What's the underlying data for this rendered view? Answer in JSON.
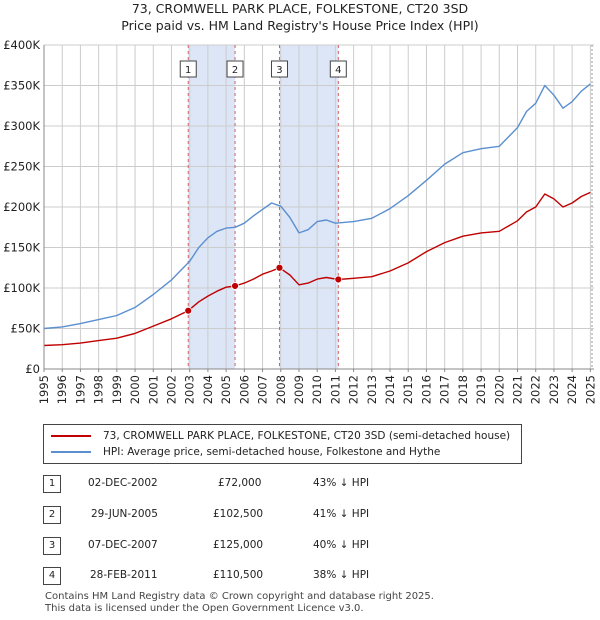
{
  "title_line1": "73, CROMWELL PARK PLACE, FOLKESTONE, CT20 3SD",
  "title_line2": "Price paid vs. HM Land Registry's House Price Index (HPI)",
  "colors": {
    "price_paid": "#c00000",
    "hpi": "#5b8fcf",
    "sale_band": "#dce6f7",
    "grid": "#cccccc"
  },
  "chart_data": {
    "type": "line",
    "title": "73, CROMWELL PARK PLACE, FOLKESTONE, CT20 3SD — Price paid vs. HM Land Registry's House Price Index (HPI)",
    "xlabel": "",
    "ylabel": "",
    "xlim": [
      1995,
      2025.2
    ],
    "ylim": [
      0,
      400000
    ],
    "x_ticks": [
      "1995",
      "1996",
      "1997",
      "1998",
      "1999",
      "2000",
      "2001",
      "2002",
      "2003",
      "2004",
      "2005",
      "2006",
      "2007",
      "2008",
      "2009",
      "2010",
      "2011",
      "2012",
      "2013",
      "2014",
      "2015",
      "2016",
      "2017",
      "2018",
      "2019",
      "2020",
      "2021",
      "2022",
      "2023",
      "2024",
      "2025"
    ],
    "y_ticks": [
      {
        "value": 0,
        "label": "£0"
      },
      {
        "value": 50000,
        "label": "£50K"
      },
      {
        "value": 100000,
        "label": "£100K"
      },
      {
        "value": 150000,
        "label": "£150K"
      },
      {
        "value": 200000,
        "label": "£200K"
      },
      {
        "value": 250000,
        "label": "£250K"
      },
      {
        "value": 300000,
        "label": "£300K"
      },
      {
        "value": 350000,
        "label": "£350K"
      },
      {
        "value": 400000,
        "label": "£400K"
      }
    ],
    "series": [
      {
        "name": "73, CROMWELL PARK PLACE, FOLKESTONE, CT20 3SD (semi-detached house)",
        "color": "#c00000",
        "x": [
          1995,
          1996,
          1997,
          1998,
          1999,
          2000,
          2001,
          2002,
          2002.92,
          2003.5,
          2004,
          2004.5,
          2005,
          2005.49,
          2006,
          2006.5,
          2007,
          2007.5,
          2007.93,
          2008.5,
          2009,
          2009.5,
          2010,
          2010.5,
          2011.16,
          2012,
          2013,
          2014,
          2015,
          2016,
          2017,
          2018,
          2019,
          2020,
          2021,
          2021.5,
          2022,
          2022.5,
          2023,
          2023.5,
          2024,
          2024.5,
          2025
        ],
        "y": [
          29000,
          30000,
          32000,
          35000,
          38000,
          44000,
          53000,
          62000,
          72000,
          83000,
          90000,
          96000,
          101000,
          102500,
          106000,
          111000,
          117000,
          121000,
          125000,
          116000,
          104000,
          106000,
          111000,
          113000,
          110500,
          112000,
          114000,
          121000,
          131000,
          145000,
          156000,
          164000,
          168000,
          170000,
          183000,
          194000,
          200000,
          216000,
          210000,
          200000,
          205000,
          213000,
          218000
        ]
      },
      {
        "name": "HPI: Average price, semi-detached house, Folkestone and Hythe",
        "color": "#5b8fcf",
        "x": [
          1995,
          1996,
          1997,
          1998,
          1999,
          2000,
          2001,
          2002,
          2003,
          2003.5,
          2004,
          2004.5,
          2005,
          2005.5,
          2006,
          2006.5,
          2007,
          2007.5,
          2008,
          2008.5,
          2009,
          2009.5,
          2010,
          2010.5,
          2011,
          2012,
          2013,
          2014,
          2015,
          2016,
          2017,
          2018,
          2019,
          2020,
          2021,
          2021.5,
          2022,
          2022.5,
          2023,
          2023.5,
          2024,
          2024.5,
          2025
        ],
        "y": [
          50000,
          52000,
          56000,
          61000,
          66000,
          76000,
          92000,
          110000,
          133000,
          150000,
          162000,
          170000,
          174000,
          175000,
          180000,
          189000,
          197000,
          205000,
          201000,
          187000,
          168000,
          172000,
          182000,
          184000,
          180000,
          182000,
          186000,
          198000,
          214000,
          233000,
          253000,
          267000,
          272000,
          275000,
          298000,
          318000,
          328000,
          350000,
          338000,
          322000,
          330000,
          343000,
          352000
        ]
      }
    ],
    "sales": [
      {
        "num": "1",
        "x": 2002.92,
        "price": 72000
      },
      {
        "num": "2",
        "x": 2005.49,
        "price": 102500
      },
      {
        "num": "3",
        "x": 2007.93,
        "price": 125000
      },
      {
        "num": "4",
        "x": 2011.16,
        "price": 110500
      }
    ],
    "shaded_bands": [
      [
        2002.92,
        2005.49
      ],
      [
        2007.93,
        2011.16
      ]
    ]
  },
  "legend": {
    "price_label": "73, CROMWELL PARK PLACE, FOLKESTONE, CT20 3SD (semi-detached house)",
    "hpi_label": "HPI: Average price, semi-detached house, Folkestone and Hythe"
  },
  "transactions": [
    {
      "num": "1",
      "date": "02-DEC-2002",
      "price": "£72,000",
      "hpi": "43% ↓ HPI"
    },
    {
      "num": "2",
      "date": "29-JUN-2005",
      "price": "£102,500",
      "hpi": "41% ↓ HPI"
    },
    {
      "num": "3",
      "date": "07-DEC-2007",
      "price": "£125,000",
      "hpi": "40% ↓ HPI"
    },
    {
      "num": "4",
      "date": "28-FEB-2011",
      "price": "£110,500",
      "hpi": "38% ↓ HPI"
    }
  ],
  "footer": {
    "line1": "Contains HM Land Registry data © Crown copyright and database right 2025.",
    "line2": "This data is licensed under the Open Government Licence v3.0."
  }
}
